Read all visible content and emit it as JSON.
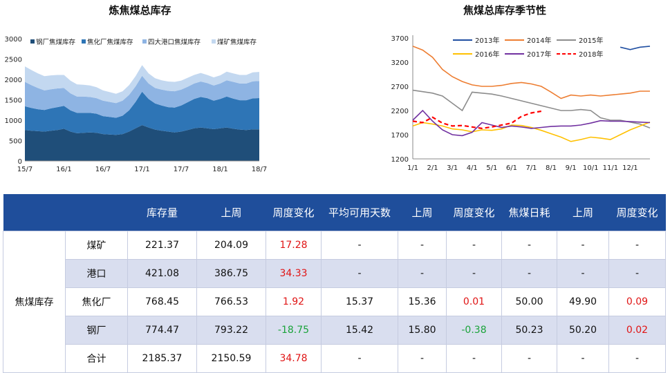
{
  "charts": {
    "left_title": "炼焦煤总库存",
    "right_title": "焦煤总库存季节性"
  },
  "colors": {
    "steel": "#1f4e79",
    "coking": "#2e75b6",
    "port": "#8eb4e3",
    "mine": "#c3d8f0",
    "y2013": "#1f4ea1",
    "y2014": "#ed7d31",
    "y2015": "#8c8c8c",
    "y2016": "#ffc000",
    "y2017": "#7030a0",
    "y2018": "#ff0000",
    "header_bg": "#1f4e9b"
  },
  "chart_data": [
    {
      "type": "area",
      "stacked": true,
      "title": "炼焦煤总库存",
      "ylim": [
        0,
        3000
      ],
      "yticks": [
        "0",
        "500",
        "1000",
        "1500",
        "2000",
        "2500",
        "3000"
      ],
      "xticks": [
        "15/7",
        "16/1",
        "16/7",
        "17/1",
        "17/7",
        "18/1",
        "18/7"
      ],
      "x": [
        "15/7",
        "15/8",
        "15/9",
        "15/10",
        "15/11",
        "15/12",
        "16/1",
        "16/2",
        "16/3",
        "16/4",
        "16/5",
        "16/6",
        "16/7",
        "16/8",
        "16/9",
        "16/10",
        "16/11",
        "16/12",
        "17/1",
        "17/2",
        "17/3",
        "17/4",
        "17/5",
        "17/6",
        "17/7",
        "17/8",
        "17/9",
        "17/10",
        "17/11",
        "17/12",
        "18/1",
        "18/2",
        "18/3",
        "18/4",
        "18/5",
        "18/6",
        "18/7"
      ],
      "legend": [
        "钢厂焦煤库存",
        "焦化厂焦煤库存",
        "四大港口焦煤库存",
        "煤矿焦煤库存"
      ],
      "series": [
        {
          "name": "钢厂焦煤库存",
          "values": [
            760,
            740,
            730,
            720,
            740,
            760,
            790,
            720,
            680,
            690,
            700,
            690,
            660,
            650,
            640,
            660,
            720,
            800,
            880,
            820,
            770,
            740,
            720,
            700,
            720,
            760,
            800,
            820,
            800,
            780,
            800,
            820,
            790,
            770,
            760,
            775,
            774
          ]
        },
        {
          "name": "焦化厂焦煤库存",
          "values": [
            580,
            560,
            540,
            530,
            550,
            560,
            560,
            520,
            500,
            490,
            480,
            470,
            440,
            430,
            420,
            450,
            520,
            650,
            820,
            700,
            640,
            620,
            600,
            610,
            640,
            680,
            720,
            750,
            740,
            700,
            720,
            760,
            740,
            720,
            730,
            760,
            768
          ]
        },
        {
          "name": "四大港口焦煤库存",
          "values": [
            600,
            560,
            520,
            480,
            470,
            460,
            440,
            420,
            400,
            400,
            390,
            380,
            380,
            370,
            360,
            370,
            380,
            380,
            390,
            380,
            380,
            390,
            400,
            400,
            390,
            380,
            380,
            380,
            370,
            370,
            380,
            400,
            410,
            410,
            410,
            420,
            421
          ]
        },
        {
          "name": "煤矿焦煤库存",
          "values": [
            380,
            370,
            360,
            350,
            340,
            330,
            320,
            310,
            300,
            290,
            280,
            270,
            250,
            240,
            230,
            230,
            240,
            250,
            260,
            250,
            240,
            230,
            230,
            230,
            220,
            220,
            210,
            210,
            200,
            200,
            200,
            210,
            210,
            210,
            210,
            220,
            221
          ]
        }
      ]
    },
    {
      "type": "line",
      "title": "焦煤总库存季节性",
      "ylim": [
        1200,
        3700
      ],
      "yticks": [
        "1200",
        "1700",
        "2200",
        "2700",
        "3200",
        "3700"
      ],
      "xticks": [
        "1/1",
        "2/1",
        "3/1",
        "4/1",
        "5/1",
        "6/1",
        "7/1",
        "8/1",
        "9/1",
        "10/1",
        "11/1",
        "12/1"
      ],
      "x": [
        "1/1",
        "1/16",
        "2/1",
        "2/16",
        "3/1",
        "3/16",
        "4/1",
        "4/16",
        "5/1",
        "5/16",
        "6/1",
        "6/16",
        "7/1",
        "7/16",
        "8/1",
        "8/16",
        "9/1",
        "9/16",
        "10/1",
        "10/16",
        "11/1",
        "11/16",
        "12/1",
        "12/16",
        "12/28"
      ],
      "series": [
        {
          "name": "2013年",
          "values": [
            null,
            null,
            null,
            null,
            null,
            null,
            null,
            null,
            null,
            null,
            null,
            null,
            null,
            null,
            null,
            null,
            null,
            null,
            null,
            null,
            null,
            3510,
            3460,
            3510,
            3530
          ]
        },
        {
          "name": "2014年",
          "values": [
            3530,
            3450,
            3300,
            3050,
            2900,
            2800,
            2730,
            2700,
            2700,
            2720,
            2760,
            2780,
            2750,
            2700,
            2580,
            2450,
            2520,
            2500,
            2520,
            2500,
            2520,
            2540,
            2560,
            2600,
            2600
          ]
        },
        {
          "name": "2015年",
          "values": [
            2620,
            2590,
            2560,
            2500,
            2350,
            2200,
            2580,
            2560,
            2540,
            2500,
            2450,
            2400,
            2350,
            2300,
            2250,
            2200,
            2200,
            2220,
            2200,
            2050,
            2000,
            2000,
            1960,
            1920,
            1840
          ]
        },
        {
          "name": "2016年",
          "values": [
            1880,
            1950,
            1920,
            1880,
            1820,
            1800,
            1760,
            1800,
            1790,
            1820,
            1900,
            1890,
            1850,
            1790,
            1720,
            1650,
            1560,
            1600,
            1650,
            1630,
            1600,
            1700,
            1800,
            1880,
            1960
          ]
        },
        {
          "name": "2017年",
          "values": [
            2000,
            2200,
            1980,
            1800,
            1700,
            1680,
            1750,
            1950,
            1900,
            1850,
            1880,
            1860,
            1830,
            1850,
            1870,
            1880,
            1880,
            1900,
            1940,
            1990,
            1980,
            1980,
            1970,
            1960,
            1950
          ]
        },
        {
          "name": "2018年",
          "values": [
            1980,
            1950,
            2060,
            1940,
            1880,
            1890,
            1860,
            1830,
            1860,
            1900,
            1940,
            2080,
            2150,
            2185,
            null,
            null,
            null,
            null,
            null,
            null,
            null,
            null,
            null,
            null,
            null
          ]
        }
      ]
    },
    {
      "type": "table",
      "headers": [
        "",
        "",
        "库存量",
        "上周",
        "周度变化",
        "平均可用天数",
        "上周",
        "周度变化",
        "焦煤日耗",
        "上周",
        "周度变化"
      ],
      "group_label": "焦煤库存",
      "rows": [
        [
          "煤矿",
          "221.37",
          "204.09",
          "17.28",
          "-",
          "-",
          "-",
          "-",
          "-",
          "-"
        ],
        [
          "港口",
          "421.08",
          "386.75",
          "34.33",
          "-",
          "-",
          "-",
          "-",
          "-",
          "-"
        ],
        [
          "焦化厂",
          "768.45",
          "766.53",
          "1.92",
          "15.37",
          "15.36",
          "0.01",
          "50.00",
          "49.90",
          "0.09"
        ],
        [
          "钢厂",
          "774.47",
          "793.22",
          "-18.75",
          "15.42",
          "15.80",
          "-0.38",
          "50.23",
          "50.20",
          "0.02"
        ],
        [
          "合计",
          "2185.37",
          "2150.59",
          "34.78",
          "-",
          "-",
          "-",
          "-",
          "-",
          "-"
        ]
      ]
    }
  ]
}
